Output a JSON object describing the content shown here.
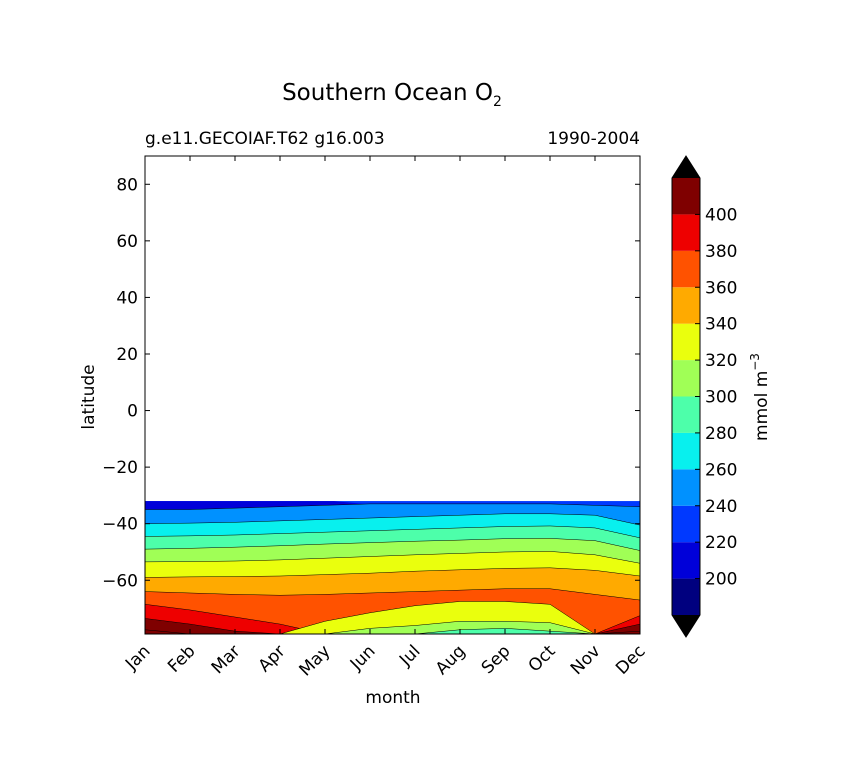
{
  "chart_data": {
    "type": "contourf",
    "title": "Southern Ocean O",
    "title_subscript": "2",
    "subtitle_left": "g.e11.GECOIAF.T62 g16.003",
    "subtitle_right": "1990-2004",
    "xlabel": "month",
    "ylabel": "latitude",
    "x_categories": [
      "Jan",
      "Feb",
      "Mar",
      "Apr",
      "May",
      "Jun",
      "Jul",
      "Aug",
      "Sep",
      "Oct",
      "Nov",
      "Dec"
    ],
    "y_ticks": [
      80,
      60,
      40,
      20,
      0,
      -20,
      -40,
      -60
    ],
    "y_tick_labels": [
      "80",
      "60",
      "40",
      "20",
      "0",
      "−20",
      "−40",
      "−60"
    ],
    "ylim": [
      -79,
      90
    ],
    "data_lat_range": [
      -79,
      -32
    ],
    "colorbar": {
      "label": "mmol m",
      "label_superscript": "−3",
      "levels": [
        180,
        200,
        220,
        240,
        260,
        280,
        300,
        320,
        340,
        360,
        380,
        400,
        420
      ],
      "tick_values": [
        200,
        220,
        240,
        260,
        280,
        300,
        320,
        340,
        360,
        380,
        400
      ],
      "tick_labels": [
        "200",
        "220",
        "240",
        "260",
        "280",
        "300",
        "320",
        "340",
        "360",
        "380",
        "400"
      ],
      "colors": [
        "#00007f",
        "#0000d9",
        "#0039ff",
        "#0091ff",
        "#08f0ee",
        "#4dffaa",
        "#a0ff56",
        "#eaff0d",
        "#ffaa00",
        "#ff5200",
        "#ee0000",
        "#7f0000"
      ],
      "extend_low_color": "#000000",
      "extend_high_color": "#000000"
    },
    "contour_boundaries": {
      "lat_axis_points": [
        -32,
        -33,
        -36,
        -40,
        -44,
        -48,
        -52,
        -58,
        -63,
        -68,
        -72,
        -74,
        -76,
        -77,
        -78,
        -79
      ],
      "lines": [
        {
          "lower": 220,
          "upper": 240,
          "lat": [
            -35,
            -35,
            -34.5,
            -34,
            -33.5,
            -33,
            -33,
            -33,
            -33,
            -33,
            -33.5,
            -34
          ]
        },
        {
          "lower": 240,
          "upper": 260,
          "lat": [
            -40,
            -39.8,
            -39.5,
            -39,
            -38.5,
            -38,
            -37.5,
            -37,
            -36.5,
            -36.5,
            -37,
            -40.5
          ]
        },
        {
          "lower": 260,
          "upper": 280,
          "lat": [
            -44.5,
            -44.3,
            -44,
            -43.5,
            -43,
            -42.5,
            -42,
            -41.5,
            -41,
            -40.8,
            -41.5,
            -45
          ]
        },
        {
          "lower": 280,
          "upper": 300,
          "lat": [
            -49,
            -48.7,
            -48.3,
            -47.8,
            -47.2,
            -46.7,
            -46.2,
            -45.8,
            -45.3,
            -45.2,
            -46,
            -49.5
          ]
        },
        {
          "lower": 300,
          "upper": 320,
          "lat": [
            -53.5,
            -53.4,
            -53.2,
            -52.8,
            -52.2,
            -51.6,
            -51,
            -50.5,
            -50,
            -49.8,
            -51,
            -54
          ]
        },
        {
          "lower": 320,
          "upper": 340,
          "lat": [
            -59,
            -58.8,
            -58.7,
            -58.5,
            -58,
            -57.5,
            -56.8,
            -56.3,
            -55.8,
            -55.6,
            -56.5,
            -58.5
          ]
        },
        {
          "lower": 340,
          "upper": 360,
          "lat": [
            -64,
            -64.5,
            -65,
            -65.3,
            -65,
            -64.5,
            -64,
            -63.5,
            -63,
            -63,
            -65,
            -67
          ]
        },
        {
          "lower": 360,
          "upper": 380,
          "lat": [
            -68.5,
            -70.5,
            -73,
            -75.5,
            -79,
            -79,
            -79,
            -79,
            -79,
            -79,
            -79,
            -72.5
          ]
        },
        {
          "lower": 380,
          "upper": 400,
          "lat": [
            -73.5,
            -75.5,
            -78,
            -79,
            -79,
            -79,
            -79,
            -79,
            -79,
            -79,
            -79,
            -75.5
          ]
        },
        {
          "lower": 400,
          "upper": 420,
          "lat": [
            -77.5,
            -79,
            -79,
            -79,
            -79,
            -79,
            -79,
            -79,
            -79,
            -79,
            -79,
            -78
          ]
        }
      ],
      "pockets_low_value_seasonal": [
        {
          "value_band": 320,
          "lat_top": [
            -79,
            -79,
            -79,
            -79,
            -74.5,
            -71.5,
            -69,
            -67.5,
            -67.5,
            -68.5,
            -79,
            -79
          ]
        },
        {
          "value_band": 300,
          "lat_top": [
            -79,
            -79,
            -79,
            -79,
            -79,
            -77,
            -76,
            -74.5,
            -74.5,
            -75,
            -79,
            -79
          ]
        },
        {
          "value_band": 280,
          "lat_top": [
            -79,
            -79,
            -79,
            -79,
            -79,
            -79,
            -79,
            -77.5,
            -77,
            -78,
            -79,
            -79
          ]
        }
      ]
    }
  }
}
